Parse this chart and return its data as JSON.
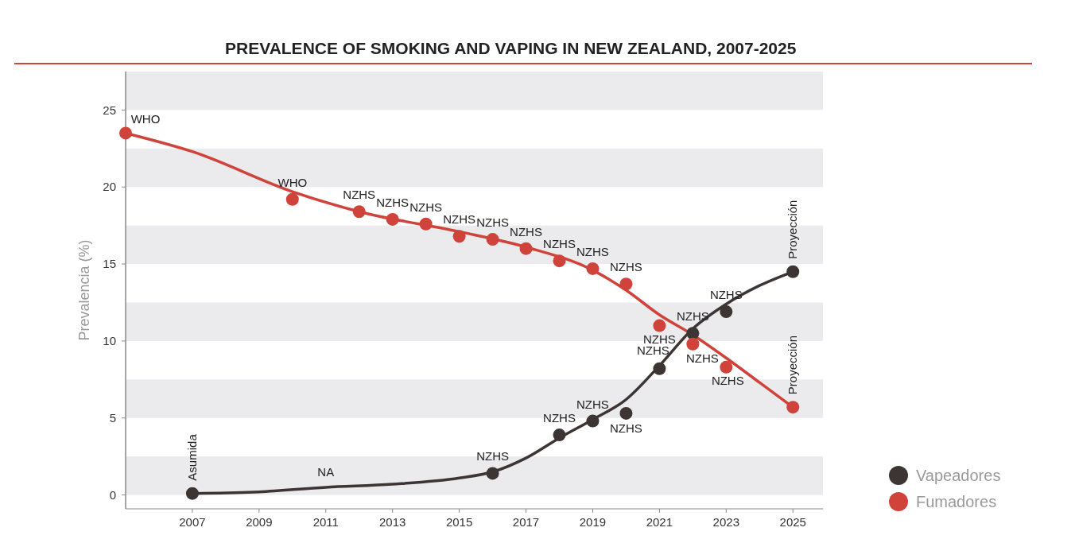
{
  "chart_data": {
    "type": "scatter",
    "title": "PREVALENCE OF SMOKING AND VAPING IN NEW ZEALAND, 2007-2025",
    "ylabel": "Prevalencia (%)",
    "xlim": [
      2005,
      2025.9
    ],
    "xticks": [
      2007,
      2009,
      2011,
      2013,
      2015,
      2017,
      2019,
      2021,
      2023,
      2025
    ],
    "ylim": [
      -0.9,
      27.5
    ],
    "yticks": [
      0,
      5,
      10,
      15,
      20,
      25
    ],
    "bands": [
      {
        "axis": "y",
        "from": 0,
        "to": 2.5,
        "color": "#ebebed"
      },
      {
        "axis": "y",
        "from": 5,
        "to": 7.5,
        "color": "#ebebed"
      },
      {
        "axis": "y",
        "from": 10,
        "to": 12.5,
        "color": "#ebebed"
      },
      {
        "axis": "y",
        "from": 15,
        "to": 17.5,
        "color": "#ebebed"
      },
      {
        "axis": "y",
        "from": 20,
        "to": 22.5,
        "color": "#ebebed"
      },
      {
        "axis": "y",
        "from": 25,
        "to": 27.5,
        "color": "#ebebed"
      }
    ],
    "legend": "bottom right",
    "marker": "circle",
    "series": [
      {
        "name": "Vapeadores",
        "color": "#3d3533",
        "x": [
          2007,
          2016,
          2018,
          2019,
          2020,
          2021,
          2022,
          2023,
          2025
        ],
        "values": [
          0.1,
          1.4,
          3.9,
          4.8,
          5.3,
          8.2,
          10.5,
          11.9,
          14.5
        ]
      },
      {
        "name": "Fumadores",
        "color": "#d0433a",
        "x": [
          2005,
          2010,
          2012,
          2013,
          2014,
          2015,
          2016,
          2017,
          2018,
          2019,
          2020,
          2021,
          2022,
          2023,
          2025
        ],
        "values": [
          23.5,
          19.2,
          18.4,
          17.9,
          17.6,
          16.8,
          16.6,
          16,
          15.2,
          14.7,
          13.7,
          11,
          9.8,
          8.3,
          5.7
        ]
      },
      {
        "type": "line",
        "marker": "none",
        "color": "#3d3533",
        "x": [
          2007,
          2009,
          2011,
          2013,
          2015,
          2016,
          2017,
          2018,
          2019,
          2020,
          2021,
          2022,
          2023,
          2024,
          2025
        ],
        "values": [
          0.1,
          0.2,
          0.5,
          0.7,
          1.1,
          1.5,
          2.4,
          3.7,
          4.9,
          6.2,
          8.4,
          10.8,
          12.4,
          13.6,
          14.5
        ]
      },
      {
        "type": "line",
        "marker": "none",
        "color": "#d0433a",
        "x": [
          2005,
          2007,
          2010,
          2012,
          2015,
          2017,
          2019,
          2020,
          2021,
          2022,
          2023,
          2024,
          2025
        ],
        "values": [
          23.5,
          22.3,
          19.7,
          18.4,
          17.1,
          16.1,
          14.6,
          13.3,
          11.7,
          10.4,
          8.9,
          7.3,
          5.7
        ]
      }
    ],
    "annotations": [
      {
        "text": "WHO",
        "x": 2005,
        "y": 23.5
      },
      {
        "text": "WHO",
        "x": 2010,
        "y": 19.2
      },
      {
        "text": "NZHS",
        "x": 2012,
        "y": 18.4
      },
      {
        "text": "NZHS",
        "x": 2013,
        "y": 17.9
      },
      {
        "text": "NZHS",
        "x": 2014,
        "y": 17.6
      },
      {
        "text": "NZHS",
        "x": 2015,
        "y": 16.8
      },
      {
        "text": "NZHS",
        "x": 2016,
        "y": 16.6
      },
      {
        "text": "NZHS",
        "x": 2017,
        "y": 16
      },
      {
        "text": "NZHS",
        "x": 2018,
        "y": 15.2
      },
      {
        "text": "NZHS",
        "x": 2019,
        "y": 14.7
      },
      {
        "text": "NZHS",
        "x": 2020,
        "y": 13.7
      },
      {
        "text": "NZHS",
        "x": 2021,
        "y": 11
      },
      {
        "text": "NZHS",
        "x": 2022,
        "y": 9.8
      },
      {
        "text": "NZHS",
        "x": 2023,
        "y": 8.3
      },
      {
        "text": "Proyección",
        "x": 2025,
        "y": 5.7
      },
      {
        "text": "Asumida",
        "x": 2007,
        "y": 0.1
      },
      {
        "text": "NA",
        "x": 2011,
        "y": 0.5
      },
      {
        "text": "NZHS",
        "x": 2016,
        "y": 1.4
      },
      {
        "text": "NZHS",
        "x": 2018,
        "y": 3.9
      },
      {
        "text": "NZHS",
        "x": 2019,
        "y": 4.8
      },
      {
        "text": "NZHS",
        "x": 2020,
        "y": 5.3
      },
      {
        "text": "NZHS",
        "x": 2021,
        "y": 8.2
      },
      {
        "text": "NZHS",
        "x": 2022,
        "y": 10.5
      },
      {
        "text": "NZHS",
        "x": 2023,
        "y": 11.9
      },
      {
        "text": "Proyección",
        "x": 2025,
        "y": 14.5
      }
    ]
  }
}
